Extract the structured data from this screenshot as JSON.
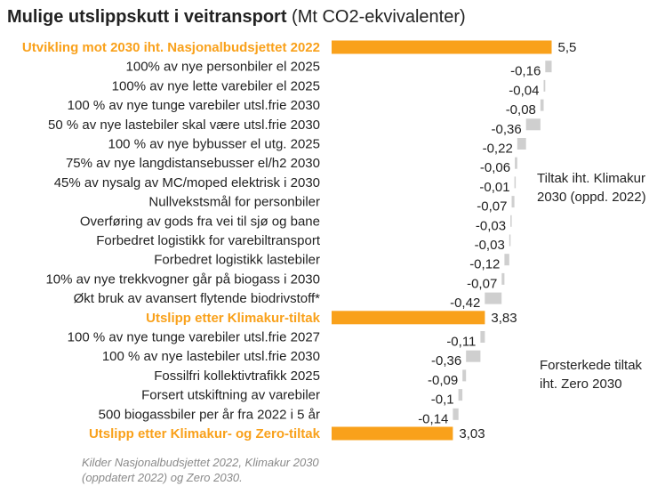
{
  "title": {
    "bold": "Mulige utslippskutt i veitransport",
    "normal": " (Mt CO2-ekvivalenter)"
  },
  "colors": {
    "total_bar": "#f9a11b",
    "step_bar": "#cfcfcf",
    "total_label": "#f9a11b",
    "text": "#222222"
  },
  "annotations": [
    {
      "lines": [
        "Tiltak iht. Klimakur",
        "2030 (oppd. 2022)"
      ]
    },
    {
      "lines": [
        "Forsterkede tiltak",
        "iht. Zero 2030"
      ]
    }
  ],
  "source": "Kilder Nasjonalbudsjettet 2022, Klimakur 2030 (oppdatert 2022) og Zero 2030.",
  "chart_data": {
    "type": "bar",
    "subtype": "waterfall",
    "orientation": "horizontal",
    "unit": "Mt CO2-ekvivalenter",
    "grid": false,
    "categories": [
      "Utvikling mot 2030 iht. Nasjonalbudsjettet 2022",
      "100% av nye personbiler el 2025",
      "100% av nye lette varebiler el 2025",
      "100 % av nye tunge varebiler utsl.frie 2030",
      "50 % av nye lastebiler skal være utsl.frie 2030",
      "100 % av nye bybusser el utg. 2025",
      "75% av nye langdistansebusser el/h2 2030",
      "45% av nysalg av MC/moped elektrisk i 2030",
      "Nullvekstsmål for personbiler",
      "Overføring av gods fra vei til sjø og bane",
      "Forbedret logistikk for varebiltransport",
      "Forbedret logistikk lastebiler",
      "10% av nye trekkvogner går på biogass i 2030",
      "Økt bruk av avansert flytende biodrivstoff*",
      "Utslipp etter Klimakur-tiltak",
      "100 % av nye tunge varebiler utsl.frie 2027",
      "100 % av nye lastebiler utsl.frie 2030",
      "Fossilfri kollektivtrafikk 2025",
      "Forsert utskiftning av varebiler",
      "500 biogassbiler per år fra 2022 i 5 år",
      "Utslipp etter Klimakur- og Zero-tiltak"
    ],
    "values": [
      5.5,
      -0.16,
      -0.04,
      -0.08,
      -0.36,
      -0.22,
      -0.06,
      -0.01,
      -0.07,
      -0.03,
      -0.03,
      -0.12,
      -0.07,
      -0.42,
      3.83,
      -0.11,
      -0.36,
      -0.09,
      -0.1,
      -0.14,
      3.03
    ],
    "value_labels": [
      "5,5",
      "-0,16",
      "-0,04",
      "-0,08",
      "-0,36",
      "-0,22",
      "-0,06",
      "-0,01",
      "-0,07",
      "-0,03",
      "-0,03",
      "-0,12",
      "-0,07",
      "-0,42",
      "3,83",
      "-0,11",
      "-0,36",
      "-0,09",
      "-0,1",
      "-0,14",
      "3,03"
    ],
    "is_total": [
      true,
      false,
      false,
      false,
      false,
      false,
      false,
      false,
      false,
      false,
      false,
      false,
      false,
      false,
      true,
      false,
      false,
      false,
      false,
      false,
      true
    ]
  }
}
